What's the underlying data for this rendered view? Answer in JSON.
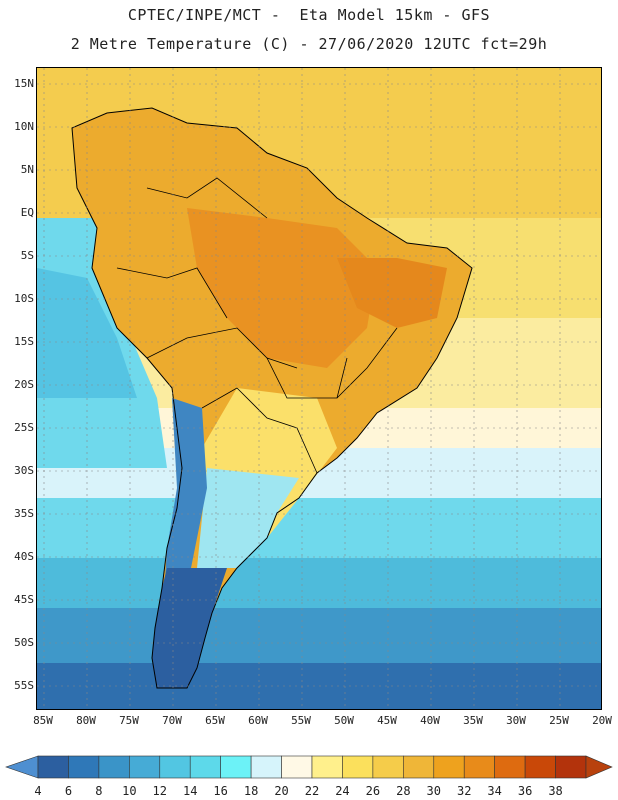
{
  "title_line1": "CPTEC/INPE/MCT -  Eta Model 15km - GFS",
  "title_line2": "2 Metre Temperature (C) - 27/06/2020 12UTC fct=29h",
  "lat_labels": [
    "15N",
    "10N",
    "5N",
    "EQ",
    "5S",
    "10S",
    "15S",
    "20S",
    "25S",
    "30S",
    "35S",
    "40S",
    "45S",
    "50S",
    "55S"
  ],
  "lon_labels": [
    "85W",
    "80W",
    "75W",
    "70W",
    "65W",
    "60W",
    "55W",
    "50W",
    "45W",
    "40W",
    "35W",
    "30W",
    "25W",
    "20W"
  ],
  "colorbar": {
    "labels": [
      "4",
      "6",
      "8",
      "10",
      "12",
      "14",
      "16",
      "18",
      "20",
      "22",
      "24",
      "26",
      "28",
      "30",
      "32",
      "34",
      "36",
      "38"
    ],
    "colors": [
      "#2c5fa0",
      "#2f78b8",
      "#3a94c8",
      "#46abd6",
      "#52c6e2",
      "#5dd9ea",
      "#6cf2f7",
      "#d6f4fb",
      "#fff9e6",
      "#fff08c",
      "#fbe05c",
      "#f5cc4a",
      "#efb638",
      "#eea21e",
      "#e88b1a",
      "#de6b10",
      "#c94808",
      "#b3330c"
    ],
    "low_arrow": "#4e8fd1",
    "high_arrow": "#b8410d"
  }
}
